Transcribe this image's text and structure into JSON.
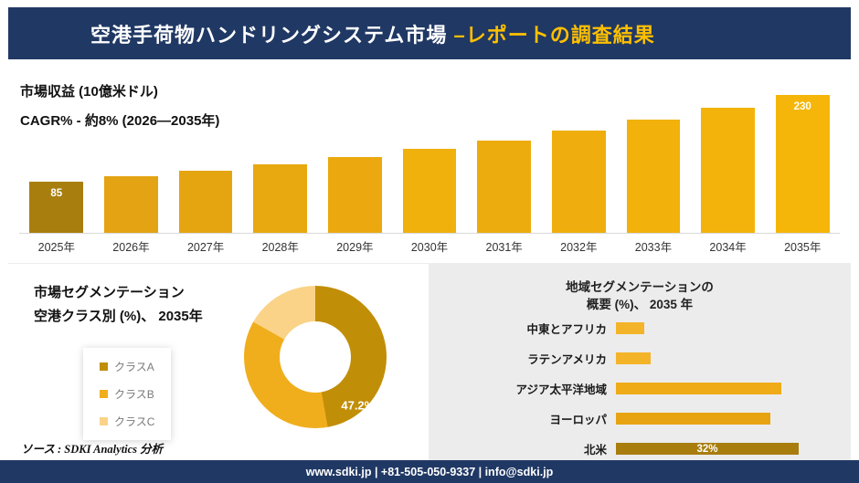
{
  "header": {
    "title_main": "空港手荷物ハンドリングシステム市場 ",
    "title_accent": "–レポートの調査結果"
  },
  "colors": {
    "navy": "#203864",
    "accent_yellow": "#ffc000",
    "panel_gray": "#ececec"
  },
  "chart_data": [
    {
      "id": "revenue-by-year",
      "type": "bar",
      "title": "市場収益 (10億米ドル)",
      "subtitle": "CAGR% - 約8% (2026―2035年)",
      "categories": [
        "2025年",
        "2026年",
        "2027年",
        "2028年",
        "2029年",
        "2030年",
        "2031年",
        "2032年",
        "2033年",
        "2034年",
        "2035年"
      ],
      "values": [
        85,
        94,
        104,
        114,
        126,
        140,
        154,
        170,
        188,
        208,
        230
      ],
      "data_labels": [
        "85",
        "",
        "",
        "",
        "",
        "",
        "",
        "",
        "",
        "",
        "230"
      ],
      "ylim": [
        0,
        245
      ],
      "bar_colors": [
        "#a87e0e",
        "#e3a312",
        "#e5a511",
        "#e8a810",
        "#eba90f",
        "#f1b10c",
        "#edac0e",
        "#efae0d",
        "#f2b10b",
        "#f4b30a",
        "#f6b609"
      ]
    },
    {
      "id": "airport-class-share",
      "type": "pie",
      "donut": true,
      "title": "市場セグメンテーション",
      "subtitle": "空港クラス別 (%)、 2035年",
      "segments": [
        {
          "label": "クラスA",
          "value": 47.2,
          "color": "#c18e08"
        },
        {
          "label": "クラスB",
          "value": 36.0,
          "color": "#f0ae1d"
        },
        {
          "label": "クラスC",
          "value": 16.8,
          "color": "#fad388"
        }
      ],
      "data_label": "47.2%",
      "legend_position": "left"
    },
    {
      "id": "region-share",
      "type": "bar",
      "orientation": "horizontal",
      "title_line1": "地域セグメンテーションの",
      "title_line2": "概要 (%)、 2035 年",
      "categories": [
        "中東とアフリカ",
        "ラテンアメリカ",
        "アジア太平洋地域",
        "ヨーロッパ",
        "北米"
      ],
      "values": [
        5,
        6,
        29,
        27,
        32
      ],
      "data_labels": [
        "",
        "",
        "",
        "",
        "32%"
      ],
      "colors": [
        "#f4b42a",
        "#f4b42a",
        "#f0ab18",
        "#e7a311",
        "#a87d0e"
      ],
      "xlim": [
        0,
        32
      ]
    }
  ],
  "source": {
    "text": "ソース : SDKI Analytics 分析"
  },
  "footer": {
    "text": "www.sdki.jp | +81-505-050-9337 | info@sdki.jp"
  }
}
